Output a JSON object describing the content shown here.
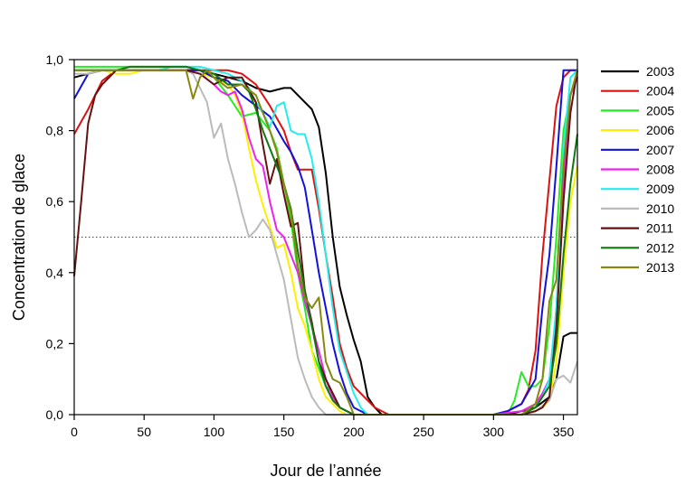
{
  "chart_data": {
    "type": "line",
    "title": "",
    "xlabel": "Jour de l’année",
    "ylabel": "Concentration de glace",
    "xlim": [
      0,
      360
    ],
    "ylim": [
      0,
      1.0
    ],
    "xticks": [
      0,
      50,
      100,
      150,
      200,
      250,
      300,
      350
    ],
    "xtick_labels": [
      "0",
      "50",
      "100",
      "150",
      "200",
      "250",
      "300",
      "350"
    ],
    "yticks": [
      0,
      0.2,
      0.4,
      0.6,
      0.8,
      1.0
    ],
    "ytick_labels": [
      "0,0",
      "0,2",
      "0,4",
      "0,6",
      "0,8",
      "1,0"
    ],
    "reference_line": {
      "y": 0.5,
      "style": "dotted"
    },
    "grid": false,
    "legend_position": "right",
    "series": [
      {
        "name": "2003",
        "color": "#000000",
        "x": [
          0,
          10,
          20,
          30,
          40,
          50,
          60,
          70,
          80,
          90,
          100,
          110,
          120,
          130,
          140,
          150,
          155,
          160,
          170,
          175,
          180,
          185,
          190,
          195,
          200,
          205,
          210,
          215,
          220,
          230,
          250,
          300,
          310,
          320,
          330,
          340,
          345,
          350,
          355,
          360
        ],
        "y": [
          0.95,
          0.96,
          0.97,
          0.97,
          0.97,
          0.97,
          0.97,
          0.97,
          0.97,
          0.97,
          0.96,
          0.95,
          0.94,
          0.92,
          0.91,
          0.92,
          0.92,
          0.9,
          0.86,
          0.81,
          0.68,
          0.5,
          0.36,
          0.28,
          0.21,
          0.15,
          0.05,
          0.02,
          0.0,
          0.0,
          0.0,
          0.0,
          0.0,
          0.01,
          0.02,
          0.05,
          0.1,
          0.22,
          0.23,
          0.23
        ]
      },
      {
        "name": "2004",
        "color": "#dd1111",
        "x": [
          0,
          10,
          20,
          30,
          40,
          50,
          60,
          70,
          80,
          90,
          100,
          110,
          120,
          130,
          140,
          150,
          155,
          160,
          165,
          170,
          175,
          180,
          185,
          190,
          195,
          200,
          205,
          210,
          215,
          220,
          225,
          230,
          250,
          300,
          310,
          320,
          325,
          330,
          335,
          340,
          345,
          350,
          355,
          360
        ],
        "y": [
          0.79,
          0.86,
          0.94,
          0.97,
          0.97,
          0.97,
          0.97,
          0.97,
          0.97,
          0.97,
          0.97,
          0.97,
          0.96,
          0.93,
          0.87,
          0.8,
          0.74,
          0.69,
          0.69,
          0.69,
          0.58,
          0.45,
          0.33,
          0.2,
          0.13,
          0.08,
          0.06,
          0.04,
          0.02,
          0.01,
          0.0,
          0.0,
          0.0,
          0.0,
          0.01,
          0.03,
          0.07,
          0.18,
          0.45,
          0.66,
          0.87,
          0.95,
          0.97,
          0.97
        ]
      },
      {
        "name": "2005",
        "color": "#22ee22",
        "x": [
          0,
          10,
          20,
          30,
          40,
          50,
          60,
          70,
          80,
          90,
          100,
          110,
          120,
          130,
          140,
          145,
          150,
          155,
          160,
          165,
          170,
          175,
          180,
          185,
          190,
          195,
          200,
          210,
          250,
          300,
          310,
          315,
          320,
          325,
          330,
          335,
          340,
          345,
          350,
          355,
          360
        ],
        "y": [
          0.98,
          0.98,
          0.98,
          0.98,
          0.98,
          0.98,
          0.98,
          0.98,
          0.98,
          0.97,
          0.95,
          0.9,
          0.84,
          0.85,
          0.8,
          0.75,
          0.65,
          0.55,
          0.4,
          0.3,
          0.18,
          0.13,
          0.08,
          0.06,
          0.02,
          0.01,
          0.0,
          0.0,
          0.0,
          0.0,
          0.0,
          0.04,
          0.12,
          0.08,
          0.08,
          0.1,
          0.25,
          0.5,
          0.8,
          0.9,
          0.97
        ]
      },
      {
        "name": "2006",
        "color": "#ffee00",
        "x": [
          0,
          10,
          20,
          30,
          40,
          50,
          60,
          70,
          80,
          90,
          100,
          110,
          115,
          120,
          125,
          130,
          135,
          140,
          145,
          150,
          155,
          160,
          165,
          170,
          175,
          180,
          185,
          190,
          195,
          200,
          250,
          300,
          320,
          330,
          335,
          340,
          345,
          350,
          355,
          360
        ],
        "y": [
          0.97,
          0.97,
          0.97,
          0.96,
          0.96,
          0.97,
          0.97,
          0.97,
          0.97,
          0.96,
          0.95,
          0.93,
          0.9,
          0.85,
          0.75,
          0.66,
          0.59,
          0.53,
          0.47,
          0.48,
          0.4,
          0.3,
          0.25,
          0.18,
          0.1,
          0.05,
          0.03,
          0.01,
          0.0,
          0.0,
          0.0,
          0.0,
          0.0,
          0.01,
          0.02,
          0.04,
          0.15,
          0.4,
          0.6,
          0.7
        ]
      },
      {
        "name": "2007",
        "color": "#1111dd",
        "x": [
          0,
          10,
          20,
          30,
          40,
          50,
          60,
          70,
          80,
          90,
          100,
          110,
          120,
          130,
          140,
          150,
          155,
          160,
          165,
          170,
          175,
          180,
          185,
          190,
          195,
          200,
          210,
          250,
          300,
          310,
          320,
          330,
          335,
          340,
          345,
          350,
          355,
          360
        ],
        "y": [
          0.89,
          0.96,
          0.97,
          0.97,
          0.97,
          0.97,
          0.97,
          0.97,
          0.97,
          0.97,
          0.95,
          0.94,
          0.9,
          0.87,
          0.84,
          0.77,
          0.74,
          0.7,
          0.64,
          0.52,
          0.4,
          0.3,
          0.2,
          0.12,
          0.06,
          0.02,
          0.0,
          0.0,
          0.0,
          0.01,
          0.03,
          0.1,
          0.3,
          0.45,
          0.7,
          0.97,
          0.97,
          0.97
        ]
      },
      {
        "name": "2008",
        "color": "#ee22ee",
        "x": [
          0,
          10,
          20,
          30,
          40,
          50,
          60,
          70,
          80,
          90,
          100,
          105,
          110,
          115,
          120,
          125,
          130,
          135,
          140,
          145,
          150,
          155,
          160,
          165,
          170,
          175,
          180,
          185,
          190,
          195,
          200,
          250,
          300,
          320,
          330,
          335,
          340,
          345,
          350,
          355,
          360
        ],
        "y": [
          0.97,
          0.97,
          0.97,
          0.97,
          0.97,
          0.97,
          0.97,
          0.97,
          0.97,
          0.96,
          0.93,
          0.91,
          0.9,
          0.91,
          0.86,
          0.78,
          0.72,
          0.7,
          0.6,
          0.52,
          0.5,
          0.45,
          0.4,
          0.32,
          0.25,
          0.18,
          0.1,
          0.05,
          0.02,
          0.01,
          0.0,
          0.0,
          0.0,
          0.01,
          0.03,
          0.06,
          0.1,
          0.3,
          0.65,
          0.9,
          0.95
        ]
      },
      {
        "name": "2009",
        "color": "#22eeee",
        "x": [
          0,
          10,
          20,
          30,
          40,
          50,
          60,
          70,
          80,
          90,
          100,
          110,
          120,
          125,
          130,
          135,
          140,
          145,
          150,
          155,
          160,
          165,
          170,
          175,
          180,
          185,
          190,
          195,
          200,
          205,
          210,
          250,
          300,
          320,
          330,
          335,
          340,
          345,
          350,
          355,
          360
        ],
        "y": [
          0.97,
          0.97,
          0.97,
          0.97,
          0.97,
          0.97,
          0.97,
          0.98,
          0.98,
          0.98,
          0.97,
          0.96,
          0.94,
          0.92,
          0.88,
          0.85,
          0.81,
          0.87,
          0.88,
          0.8,
          0.79,
          0.79,
          0.72,
          0.6,
          0.45,
          0.3,
          0.18,
          0.12,
          0.06,
          0.02,
          0.0,
          0.0,
          0.0,
          0.0,
          0.02,
          0.05,
          0.1,
          0.3,
          0.75,
          0.95,
          0.97
        ]
      },
      {
        "name": "2010",
        "color": "#bbbbbb",
        "x": [
          0,
          10,
          20,
          30,
          40,
          50,
          60,
          70,
          80,
          85,
          90,
          95,
          100,
          105,
          110,
          115,
          120,
          125,
          130,
          135,
          140,
          145,
          150,
          155,
          160,
          165,
          170,
          175,
          180,
          250,
          300,
          320,
          330,
          340,
          345,
          350,
          355,
          360
        ],
        "y": [
          0.96,
          0.96,
          0.97,
          0.97,
          0.97,
          0.97,
          0.97,
          0.97,
          0.97,
          0.96,
          0.92,
          0.88,
          0.78,
          0.82,
          0.72,
          0.65,
          0.57,
          0.5,
          0.52,
          0.55,
          0.52,
          0.45,
          0.38,
          0.27,
          0.16,
          0.1,
          0.05,
          0.02,
          0.0,
          0.0,
          0.0,
          0.0,
          0.01,
          0.04,
          0.1,
          0.11,
          0.09,
          0.15
        ]
      },
      {
        "name": "2011",
        "color": "#661111",
        "x": [
          0,
          5,
          10,
          15,
          20,
          30,
          40,
          50,
          60,
          70,
          80,
          90,
          100,
          110,
          120,
          130,
          135,
          140,
          145,
          150,
          155,
          160,
          165,
          170,
          175,
          180,
          185,
          190,
          200,
          250,
          300,
          320,
          330,
          335,
          340,
          345,
          350,
          355,
          360
        ],
        "y": [
          0.39,
          0.6,
          0.82,
          0.9,
          0.93,
          0.97,
          0.97,
          0.97,
          0.97,
          0.97,
          0.97,
          0.96,
          0.93,
          0.95,
          0.95,
          0.88,
          0.76,
          0.65,
          0.72,
          0.62,
          0.53,
          0.54,
          0.35,
          0.26,
          0.15,
          0.1,
          0.06,
          0.02,
          0.0,
          0.0,
          0.0,
          0.0,
          0.01,
          0.02,
          0.05,
          0.25,
          0.6,
          0.85,
          0.97
        ]
      },
      {
        "name": "2012",
        "color": "#117711",
        "x": [
          0,
          10,
          20,
          30,
          40,
          50,
          60,
          70,
          80,
          90,
          100,
          110,
          120,
          125,
          130,
          135,
          140,
          145,
          150,
          155,
          160,
          165,
          170,
          175,
          180,
          185,
          190,
          195,
          200,
          250,
          300,
          320,
          330,
          340,
          345,
          350,
          355,
          360
        ],
        "y": [
          0.97,
          0.97,
          0.97,
          0.97,
          0.98,
          0.98,
          0.98,
          0.98,
          0.98,
          0.97,
          0.96,
          0.93,
          0.93,
          0.91,
          0.86,
          0.8,
          0.75,
          0.7,
          0.65,
          0.58,
          0.46,
          0.35,
          0.25,
          0.15,
          0.08,
          0.04,
          0.02,
          0.01,
          0.0,
          0.0,
          0.0,
          0.0,
          0.02,
          0.08,
          0.2,
          0.45,
          0.65,
          0.79
        ]
      },
      {
        "name": "2013",
        "color": "#888811",
        "x": [
          0,
          10,
          20,
          30,
          40,
          50,
          60,
          70,
          80,
          85,
          90,
          95,
          100,
          110,
          120,
          130,
          140,
          145,
          150,
          155,
          160,
          165,
          170,
          175,
          180,
          185,
          190,
          195,
          200,
          250,
          300,
          320,
          330,
          335,
          340,
          345,
          350,
          355,
          360
        ],
        "y": [
          0.97,
          0.97,
          0.97,
          0.97,
          0.97,
          0.97,
          0.97,
          0.97,
          0.97,
          0.89,
          0.95,
          0.97,
          0.95,
          0.92,
          0.93,
          0.9,
          0.8,
          0.74,
          0.65,
          0.57,
          0.42,
          0.33,
          0.3,
          0.33,
          0.15,
          0.1,
          0.09,
          0.05,
          0.0,
          0.0,
          0.0,
          0.0,
          0.03,
          0.1,
          0.32,
          0.38,
          0.7,
          0.9,
          0.97
        ]
      }
    ]
  }
}
